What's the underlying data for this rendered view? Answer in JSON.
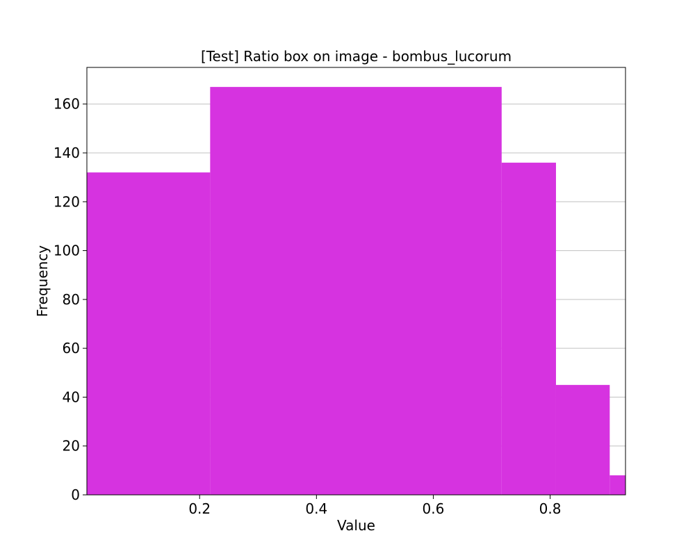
{
  "chart_data": {
    "type": "bar",
    "title": "[Test] Ratio box on image - bombus_lucorum",
    "xlabel": "Value",
    "ylabel": "Frequency",
    "bins": [
      {
        "x0": 0.007,
        "x1": 0.218,
        "count": 132
      },
      {
        "x0": 0.218,
        "x1": 0.717,
        "count": 167
      },
      {
        "x0": 0.717,
        "x1": 0.81,
        "count": 136
      },
      {
        "x0": 0.81,
        "x1": 0.902,
        "count": 45
      },
      {
        "x0": 0.902,
        "x1": 0.929,
        "count": 8
      }
    ],
    "xlim": [
      0.007,
      0.929
    ],
    "ylim": [
      0,
      175
    ],
    "xticks": [
      0.2,
      0.4,
      0.6,
      0.8
    ],
    "xtick_labels": [
      "0.2",
      "0.4",
      "0.6",
      "0.8"
    ],
    "yticks": [
      0,
      20,
      40,
      60,
      80,
      100,
      120,
      140,
      160
    ],
    "ytick_labels": [
      "0",
      "20",
      "40",
      "60",
      "80",
      "100",
      "120",
      "140",
      "160"
    ],
    "bar_color": "#d633e0",
    "grid": "y"
  }
}
